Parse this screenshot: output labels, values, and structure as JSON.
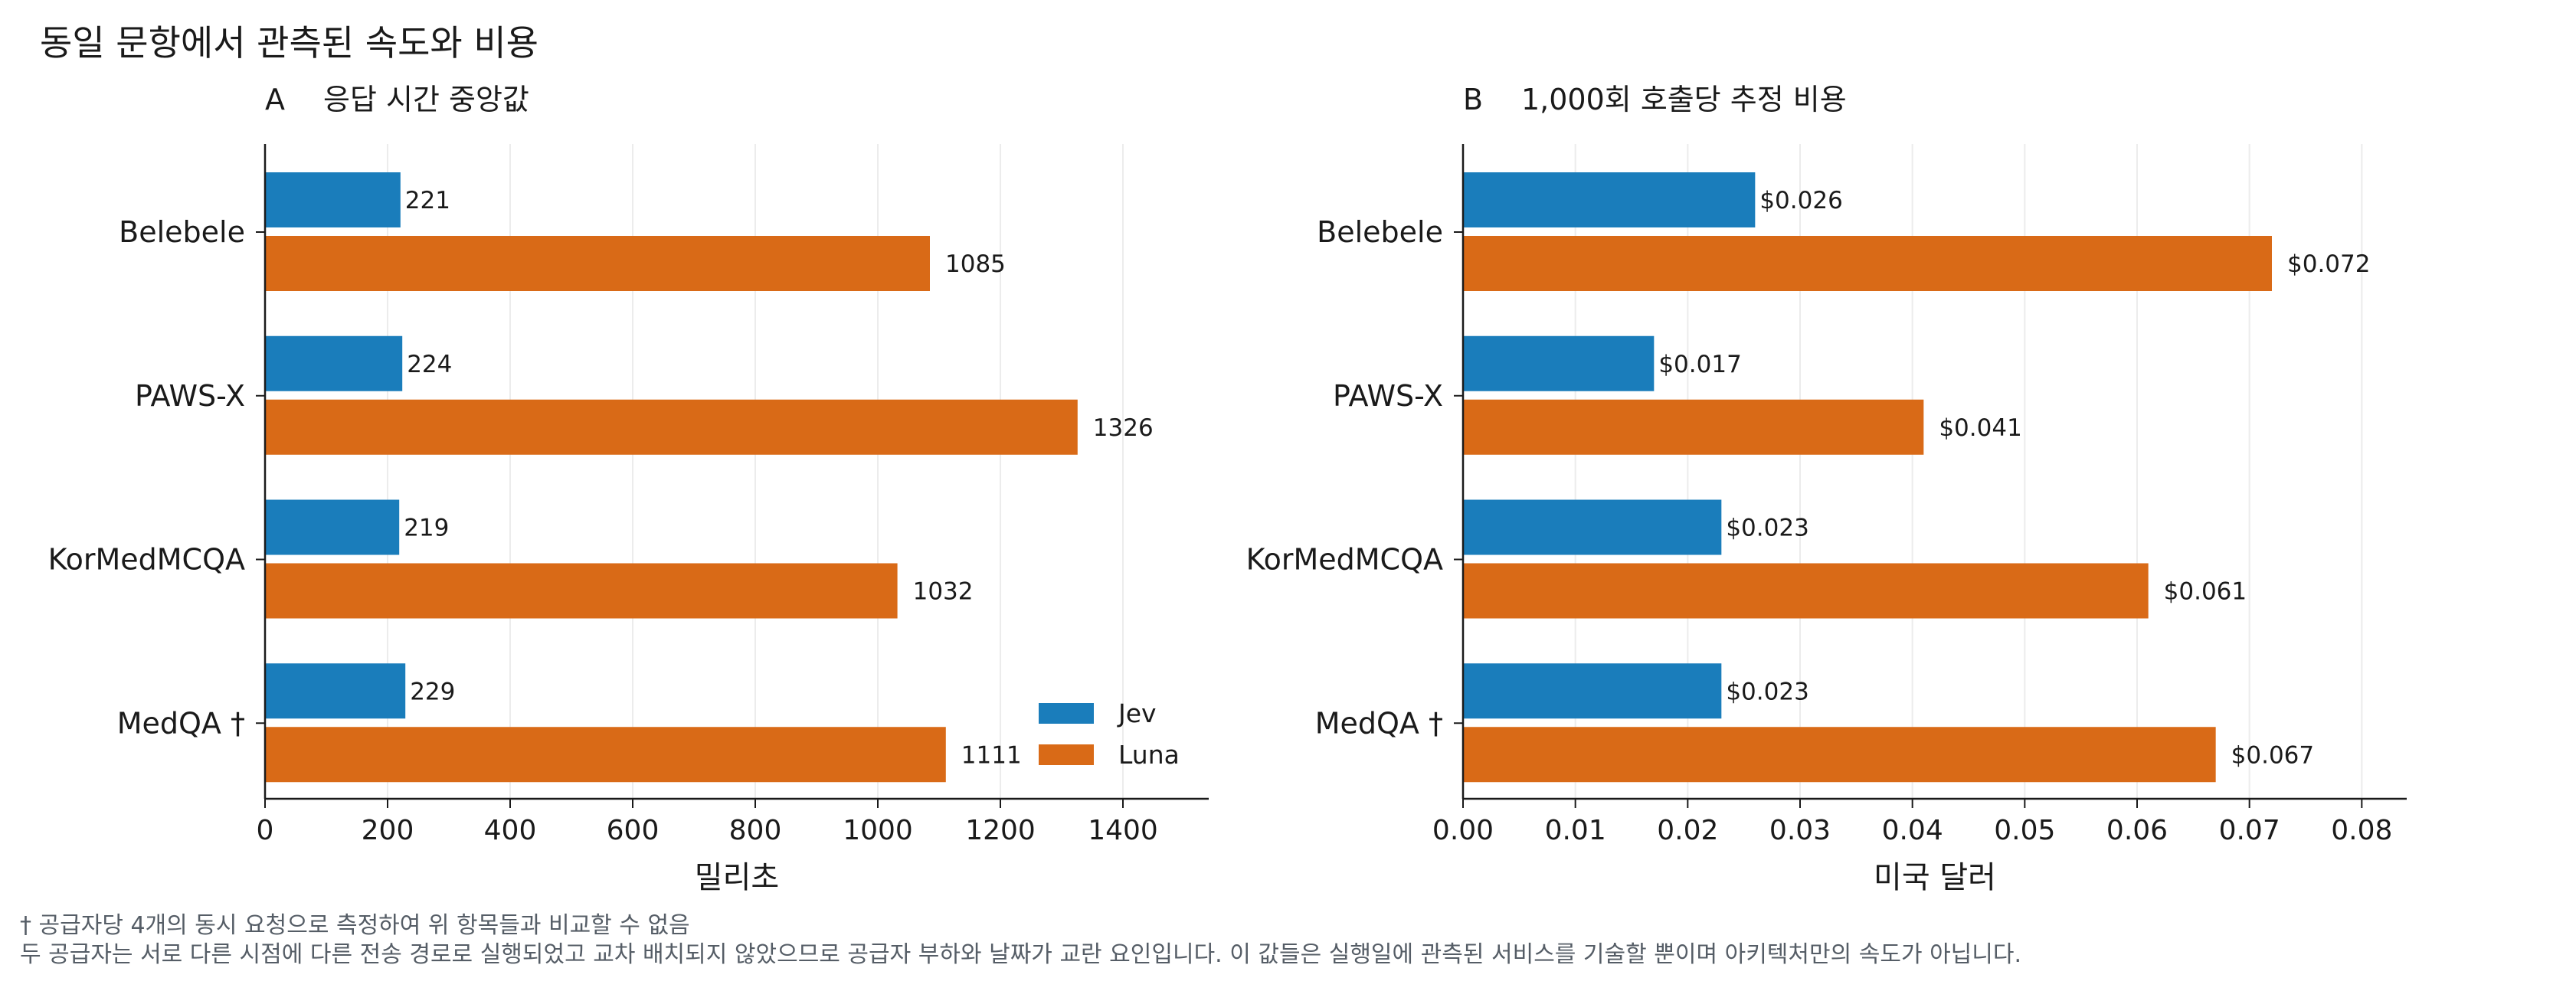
{
  "title": "동일 문항에서 관측된 속도와 비용",
  "footnotes": [
    "† 공급자당 4개의 동시 요청으로 측정하여 위 항목들과 비교할 수 없음",
    "두 공급자는 서로 다른 시점에 다른 전송 경로로 실행되었고 교차 배치되지 않았으므로 공급자 부하와 날짜가 교란 요인입니다. 이 값들은 실행일에 관측된 서비스를 기술할 뿐이며 아키텍처만의 속도가 아닙니다."
  ],
  "colors": {
    "Jev": "#1a7dbb",
    "Luna": "#d96a17"
  },
  "chart_data": [
    {
      "type": "bar",
      "orientation": "horizontal",
      "panel_letter": "A",
      "title": "응답 시간 중앙값",
      "xlabel": "밀리초",
      "ylabel": "",
      "categories": [
        "Belebele",
        "PAWS-X",
        "KorMedMCQA",
        "MedQA †"
      ],
      "series": [
        {
          "name": "Jev",
          "values": [
            221,
            224,
            219,
            229
          ],
          "labels": [
            "221",
            "224",
            "219",
            "229"
          ]
        },
        {
          "name": "Luna",
          "values": [
            1085,
            1326,
            1032,
            1111
          ],
          "labels": [
            "1085",
            "1326",
            "1032",
            "1111"
          ]
        }
      ],
      "xlim": [
        0,
        1540
      ],
      "xticks": [
        0,
        200,
        400,
        600,
        800,
        1000,
        1200,
        1400
      ],
      "xtick_labels": [
        "0",
        "200",
        "400",
        "600",
        "800",
        "1000",
        "1200",
        "1400"
      ],
      "grid": "vertical",
      "legend": {
        "placement": "lower-right",
        "entries": [
          "Jev",
          "Luna"
        ]
      }
    },
    {
      "type": "bar",
      "orientation": "horizontal",
      "panel_letter": "B",
      "title": "1,000회 호출당 추정 비용",
      "xlabel": "미국 달러",
      "ylabel": "",
      "categories": [
        "Belebele",
        "PAWS-X",
        "KorMedMCQA",
        "MedQA †"
      ],
      "series": [
        {
          "name": "Jev",
          "values": [
            0.026,
            0.017,
            0.023,
            0.023
          ],
          "labels": [
            "$0.026",
            "$0.017",
            "$0.023",
            "$0.023"
          ]
        },
        {
          "name": "Luna",
          "values": [
            0.072,
            0.041,
            0.061,
            0.067
          ],
          "labels": [
            "$0.072",
            "$0.041",
            "$0.061",
            "$0.067"
          ]
        }
      ],
      "xlim": [
        0,
        0.084
      ],
      "xticks": [
        0,
        0.01,
        0.02,
        0.03,
        0.04,
        0.05,
        0.06,
        0.07,
        0.08
      ],
      "xtick_labels": [
        "0.00",
        "0.01",
        "0.02",
        "0.03",
        "0.04",
        "0.05",
        "0.06",
        "0.07",
        "0.08"
      ],
      "grid": "vertical"
    }
  ]
}
